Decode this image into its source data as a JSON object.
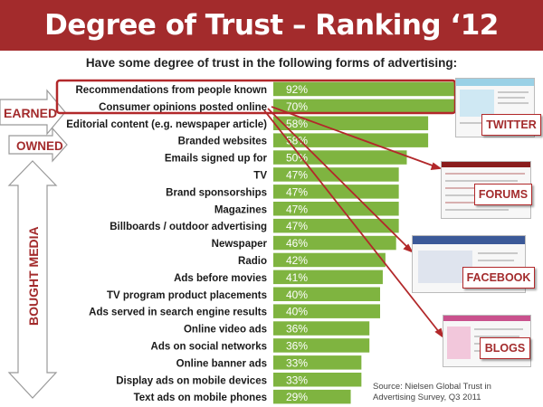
{
  "header": {
    "title": "Degree of Trust – Ranking ‘12"
  },
  "subtitle": "Have some degree of trust in the following forms of advertising:",
  "groups": {
    "earned": "EARNED",
    "owned": "OWNED",
    "bought": "BOUGHT MEDIA"
  },
  "callouts": {
    "twitter": "TWITTER",
    "forums": "FORUMS",
    "facebook": "FACEBOOK",
    "blogs": "BLOGS"
  },
  "source": "Source: Nielsen Global Trust in Advertising Survey, Q3 2011",
  "colors": {
    "header": "#a32b2c",
    "bar": "#7fb440",
    "accent": "#b2282a"
  },
  "chart_data": {
    "type": "bar",
    "orientation": "horizontal",
    "categories": [
      "Recommendations from people known",
      "Consumer opinions posted online",
      "Editorial content (e.g. newspaper article)",
      "Branded websites",
      "Emails signed up for",
      "TV",
      "Brand sponsorships",
      "Magazines",
      "Billboards / outdoor advertising",
      "Newspaper",
      "Radio",
      "Ads before movies",
      "TV program product placements",
      "Ads served in search engine results",
      "Online video ads",
      "Ads on social networks",
      "Online banner ads",
      "Display ads on mobile devices",
      "Text ads on mobile phones"
    ],
    "values": [
      92,
      70,
      58,
      58,
      50,
      47,
      47,
      47,
      47,
      46,
      42,
      41,
      40,
      40,
      36,
      36,
      33,
      33,
      29
    ],
    "value_labels": [
      "92%",
      "70%",
      "58%",
      "58%",
      "50%",
      "47%",
      "47%",
      "47%",
      "47%",
      "46%",
      "42%",
      "41%",
      "40%",
      "40%",
      "36%",
      "36%",
      "33%",
      "33%",
      "29%"
    ],
    "title": "Degree of Trust – Ranking ‘12",
    "subtitle": "Have some degree of trust in the following forms of advertising:",
    "xlabel": "",
    "ylabel": "",
    "xlim": [
      0,
      100
    ],
    "grid": false
  }
}
